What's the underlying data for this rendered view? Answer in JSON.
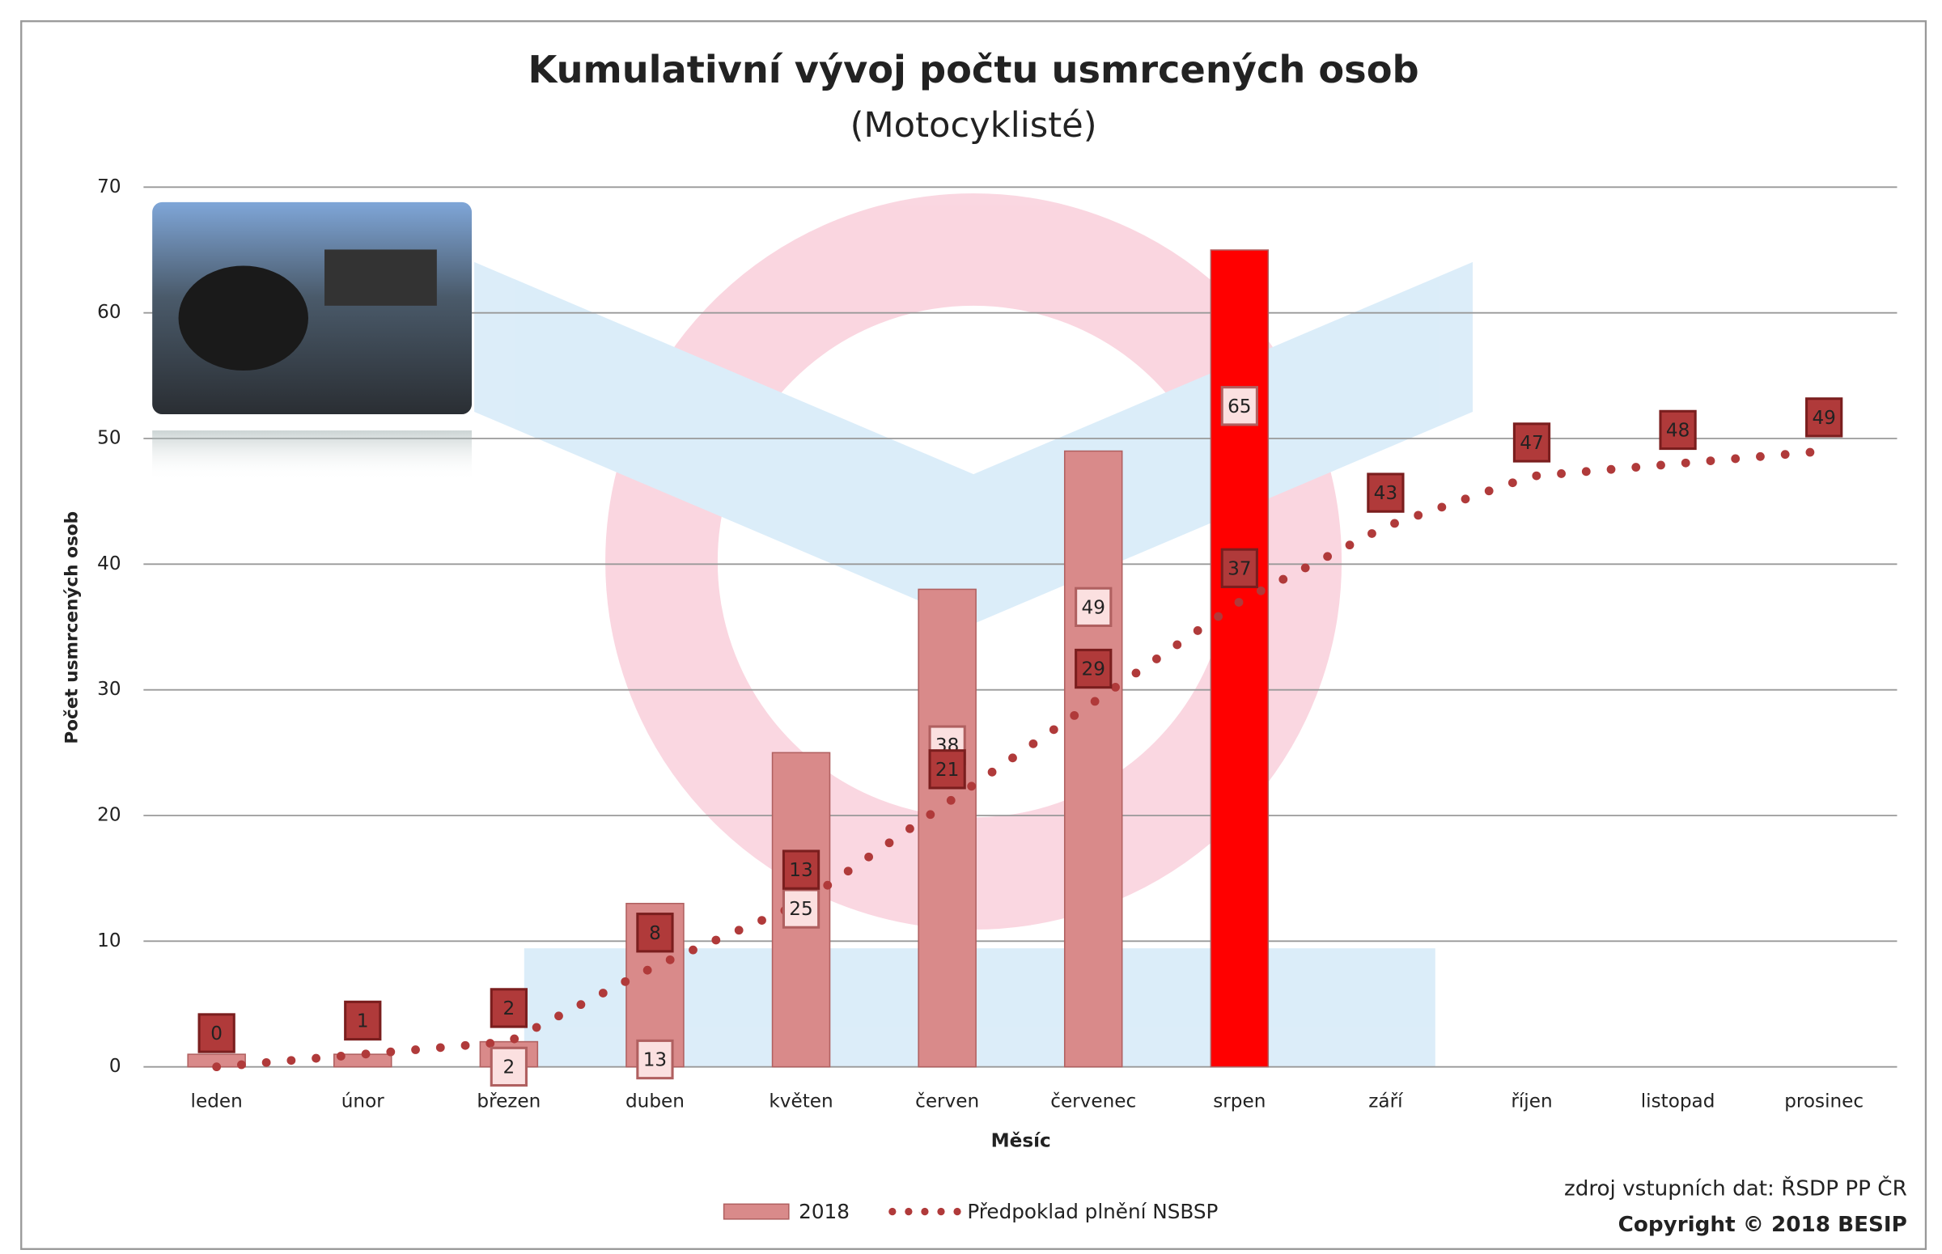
{
  "chart_data": {
    "type": "bar-line",
    "title": "Kumulativní vývoj počtu usmrcených osob",
    "subtitle": "(Motocyklisté)",
    "y_label": "Počet usmrcených osob",
    "x_label": "Měsíc",
    "categories": [
      "leden",
      "únor",
      "březen",
      "duben",
      "květen",
      "červen",
      "červenec",
      "srpen",
      "září",
      "říjen",
      "listopad",
      "prosinec"
    ],
    "series": [
      {
        "name": "2018",
        "type": "bar",
        "color": "#d98a8a",
        "colors": [
          "#d98a8a",
          "#d98a8a",
          "#d98a8a",
          "#d98a8a",
          "#d98a8a",
          "#d98a8a",
          "#d98a8a",
          "#ff0000",
          "#d98a8a",
          "#d98a8a",
          "#d98a8a",
          "#d98a8a"
        ],
        "values": [
          1,
          1,
          2,
          13,
          25,
          38,
          49,
          65,
          null,
          null,
          null,
          null
        ],
        "value_labels": [
          null,
          null,
          "2",
          "13",
          "25",
          "38",
          "49",
          "65",
          null,
          null,
          null,
          null
        ]
      },
      {
        "name": "Předpoklad plnění NSBSP",
        "type": "line",
        "color": "#b03a3a",
        "dotted": true,
        "values": [
          0,
          1,
          2,
          8,
          13,
          21,
          29,
          37,
          43,
          47,
          48,
          49
        ]
      }
    ],
    "ylim": [
      0,
      70
    ],
    "yticks": [
      0,
      10,
      20,
      30,
      40,
      50,
      60,
      70
    ],
    "grid": true,
    "source": "zdroj vstupních dat: ŘSDP PP ČR",
    "copyright": "Copyright © 2018 BESIP"
  }
}
